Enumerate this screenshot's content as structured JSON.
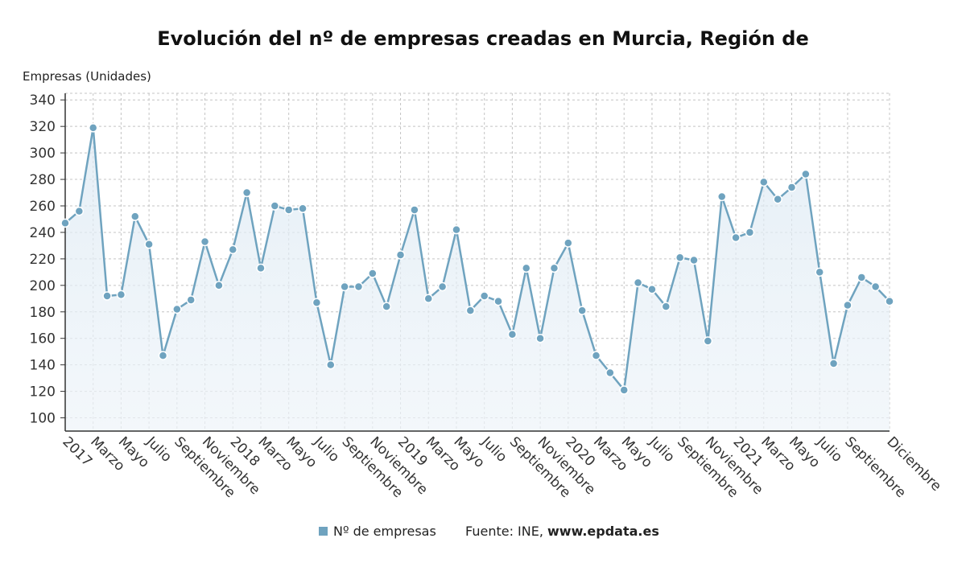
{
  "chart_data": {
    "type": "line",
    "title": "Evolución del nº de empresas creadas en Murcia, Región de",
    "ylabel": "Empresas (Unidades)",
    "xlabel": "",
    "ylim": [
      90,
      345
    ],
    "yticks": [
      100,
      120,
      140,
      160,
      180,
      200,
      220,
      240,
      260,
      280,
      300,
      320,
      340
    ],
    "grid": true,
    "legend_position": "bottom",
    "x_tick_labels": [
      {
        "index": 0,
        "label": "2017"
      },
      {
        "index": 2,
        "label": "Marzo"
      },
      {
        "index": 4,
        "label": "Mayo"
      },
      {
        "index": 6,
        "label": "Julio"
      },
      {
        "index": 8,
        "label": "Septiembre"
      },
      {
        "index": 10,
        "label": "Noviembre"
      },
      {
        "index": 12,
        "label": "2018"
      },
      {
        "index": 14,
        "label": "Marzo"
      },
      {
        "index": 16,
        "label": "Mayo"
      },
      {
        "index": 18,
        "label": "Julio"
      },
      {
        "index": 20,
        "label": "Septiembre"
      },
      {
        "index": 22,
        "label": "Noviembre"
      },
      {
        "index": 24,
        "label": "2019"
      },
      {
        "index": 26,
        "label": "Marzo"
      },
      {
        "index": 28,
        "label": "Mayo"
      },
      {
        "index": 30,
        "label": "Julio"
      },
      {
        "index": 32,
        "label": "Septiembre"
      },
      {
        "index": 34,
        "label": "Noviembre"
      },
      {
        "index": 36,
        "label": "2020"
      },
      {
        "index": 38,
        "label": "Marzo"
      },
      {
        "index": 40,
        "label": "Mayo"
      },
      {
        "index": 42,
        "label": "Julio"
      },
      {
        "index": 44,
        "label": "Septiembre"
      },
      {
        "index": 46,
        "label": "Noviembre"
      },
      {
        "index": 48,
        "label": "2021"
      },
      {
        "index": 50,
        "label": "Marzo"
      },
      {
        "index": 52,
        "label": "Mayo"
      },
      {
        "index": 54,
        "label": "Julio"
      },
      {
        "index": 56,
        "label": "Septiembre"
      },
      {
        "index": 59,
        "label": "Diciembre"
      }
    ],
    "series": [
      {
        "name": "Nº de empresas",
        "color": "#6fa3bf",
        "values": [
          247,
          256,
          319,
          192,
          193,
          252,
          231,
          147,
          182,
          189,
          233,
          200,
          227,
          270,
          213,
          260,
          257,
          258,
          187,
          140,
          199,
          199,
          209,
          184,
          223,
          257,
          190,
          199,
          242,
          181,
          192,
          188,
          163,
          213,
          160,
          213,
          232,
          181,
          147,
          134,
          121,
          202,
          197,
          184,
          221,
          219,
          158,
          267,
          236,
          240,
          278,
          265,
          274,
          284,
          210,
          141,
          185,
          206,
          199,
          188
        ]
      }
    ]
  },
  "legend": {
    "series_label": "Nº de empresas",
    "source_prefix": "Fuente: INE, ",
    "source_url": "www.epdata.es"
  }
}
